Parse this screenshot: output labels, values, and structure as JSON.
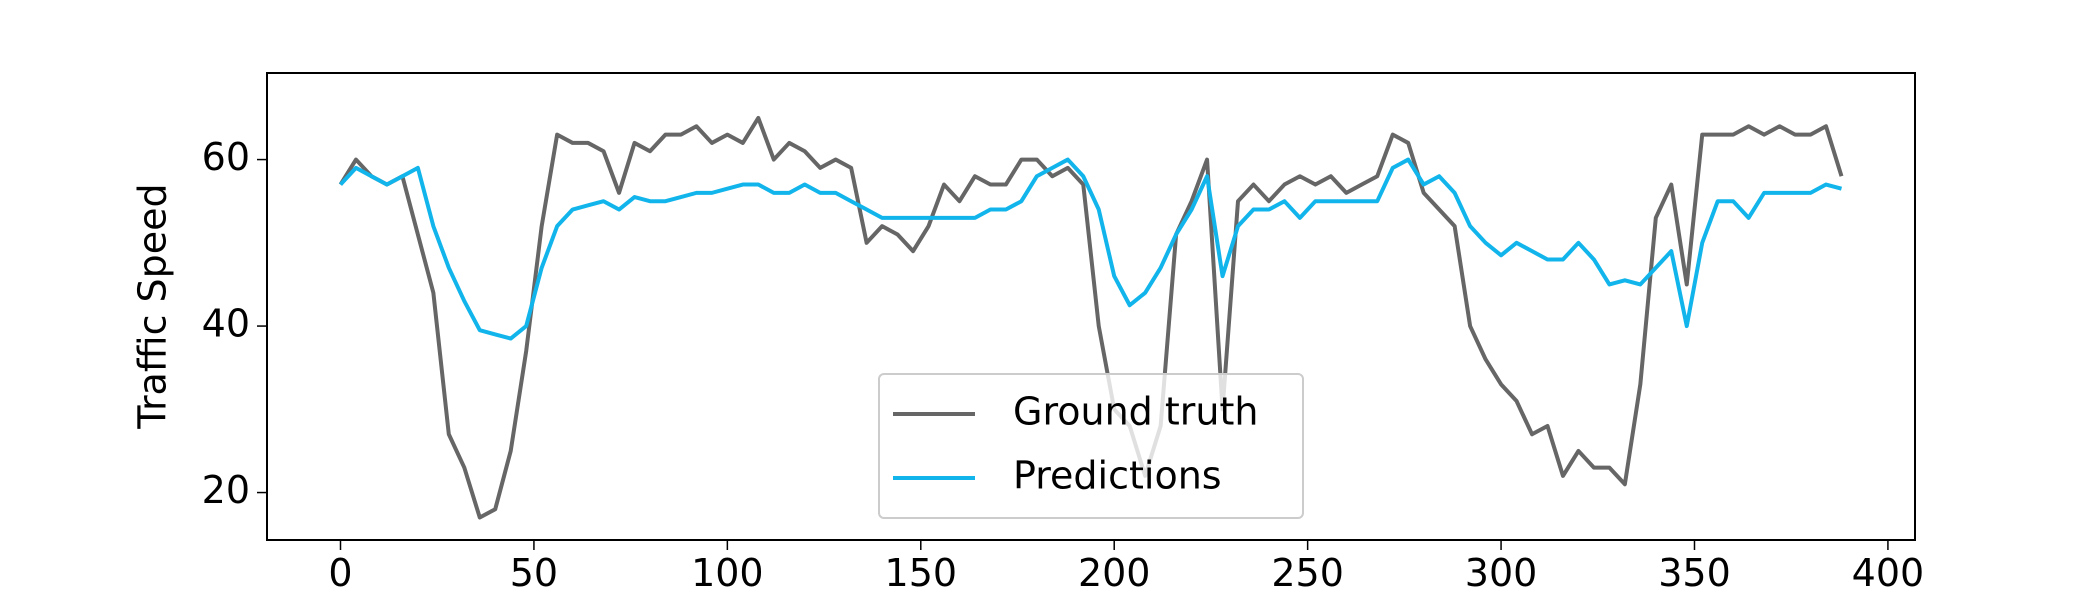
{
  "chart_data": {
    "type": "line",
    "ylabel": "Traffic Speed",
    "x": [
      0,
      4,
      8,
      12,
      16,
      20,
      24,
      28,
      32,
      36,
      40,
      44,
      48,
      52,
      56,
      60,
      64,
      68,
      72,
      76,
      80,
      84,
      88,
      92,
      96,
      100,
      104,
      108,
      112,
      116,
      120,
      124,
      128,
      132,
      136,
      140,
      144,
      148,
      152,
      156,
      160,
      164,
      168,
      172,
      176,
      180,
      184,
      188,
      192,
      196,
      200,
      204,
      208,
      212,
      216,
      220,
      224,
      228,
      232,
      236,
      240,
      244,
      248,
      252,
      256,
      260,
      264,
      268,
      272,
      276,
      280,
      284,
      288,
      292,
      296,
      300,
      304,
      308,
      312,
      316,
      320,
      324,
      328,
      332,
      336,
      340,
      344,
      348,
      352,
      356,
      360,
      364,
      368,
      372,
      376,
      380,
      384,
      388
    ],
    "series": [
      {
        "name": "Ground truth",
        "color": "#666666",
        "values": [
          57,
          60,
          58,
          57,
          58,
          51,
          44,
          27,
          23,
          17,
          18,
          25,
          37,
          52,
          63,
          62,
          62,
          61,
          56,
          62,
          61,
          63,
          63,
          64,
          62,
          63,
          62,
          65,
          60,
          62,
          61,
          59,
          60,
          59,
          50,
          52,
          51,
          49,
          52,
          57,
          55,
          58,
          57,
          57,
          60,
          60,
          58,
          59,
          57,
          40,
          30,
          28,
          22,
          28,
          51,
          55,
          60,
          30,
          55,
          57,
          55,
          57,
          58,
          57,
          58,
          56,
          57,
          58,
          63,
          62,
          56,
          54,
          52,
          40,
          36,
          33,
          31,
          27,
          28,
          22,
          25,
          23,
          23,
          21,
          33,
          53,
          57,
          45,
          63,
          63,
          63,
          64,
          63,
          64,
          63,
          63,
          64,
          58
        ]
      },
      {
        "name": "Predictions",
        "color": "#12b5eb",
        "values": [
          57,
          59,
          58,
          57,
          58,
          59,
          52,
          47,
          43,
          39.5,
          39,
          38.5,
          40,
          47,
          52,
          54,
          54.5,
          55,
          54,
          55.5,
          55,
          55,
          55.5,
          56,
          56,
          56.5,
          57,
          57,
          56,
          56,
          57,
          56,
          56,
          55,
          54,
          53,
          53,
          53,
          53,
          53,
          53,
          53,
          54,
          54,
          55,
          58,
          59,
          60,
          58,
          54,
          46,
          42.5,
          44,
          47,
          51,
          54,
          58,
          46,
          52,
          54,
          54,
          55,
          53,
          55,
          55,
          55,
          55,
          55,
          59,
          60,
          57,
          58,
          56,
          52,
          50,
          48.5,
          50,
          49,
          48,
          48,
          50,
          48,
          45,
          45.5,
          45,
          47,
          49,
          40,
          50,
          55,
          55,
          53,
          56,
          56,
          56,
          56,
          57,
          56.5
        ]
      }
    ],
    "xlim": [
      -19,
      407
    ],
    "ylim": [
      14.3,
      70.4
    ],
    "xticks": [
      0,
      50,
      100,
      150,
      200,
      250,
      300,
      350,
      400
    ],
    "yticks": [
      20,
      40,
      60
    ],
    "grid": false,
    "legend": "lower center"
  }
}
